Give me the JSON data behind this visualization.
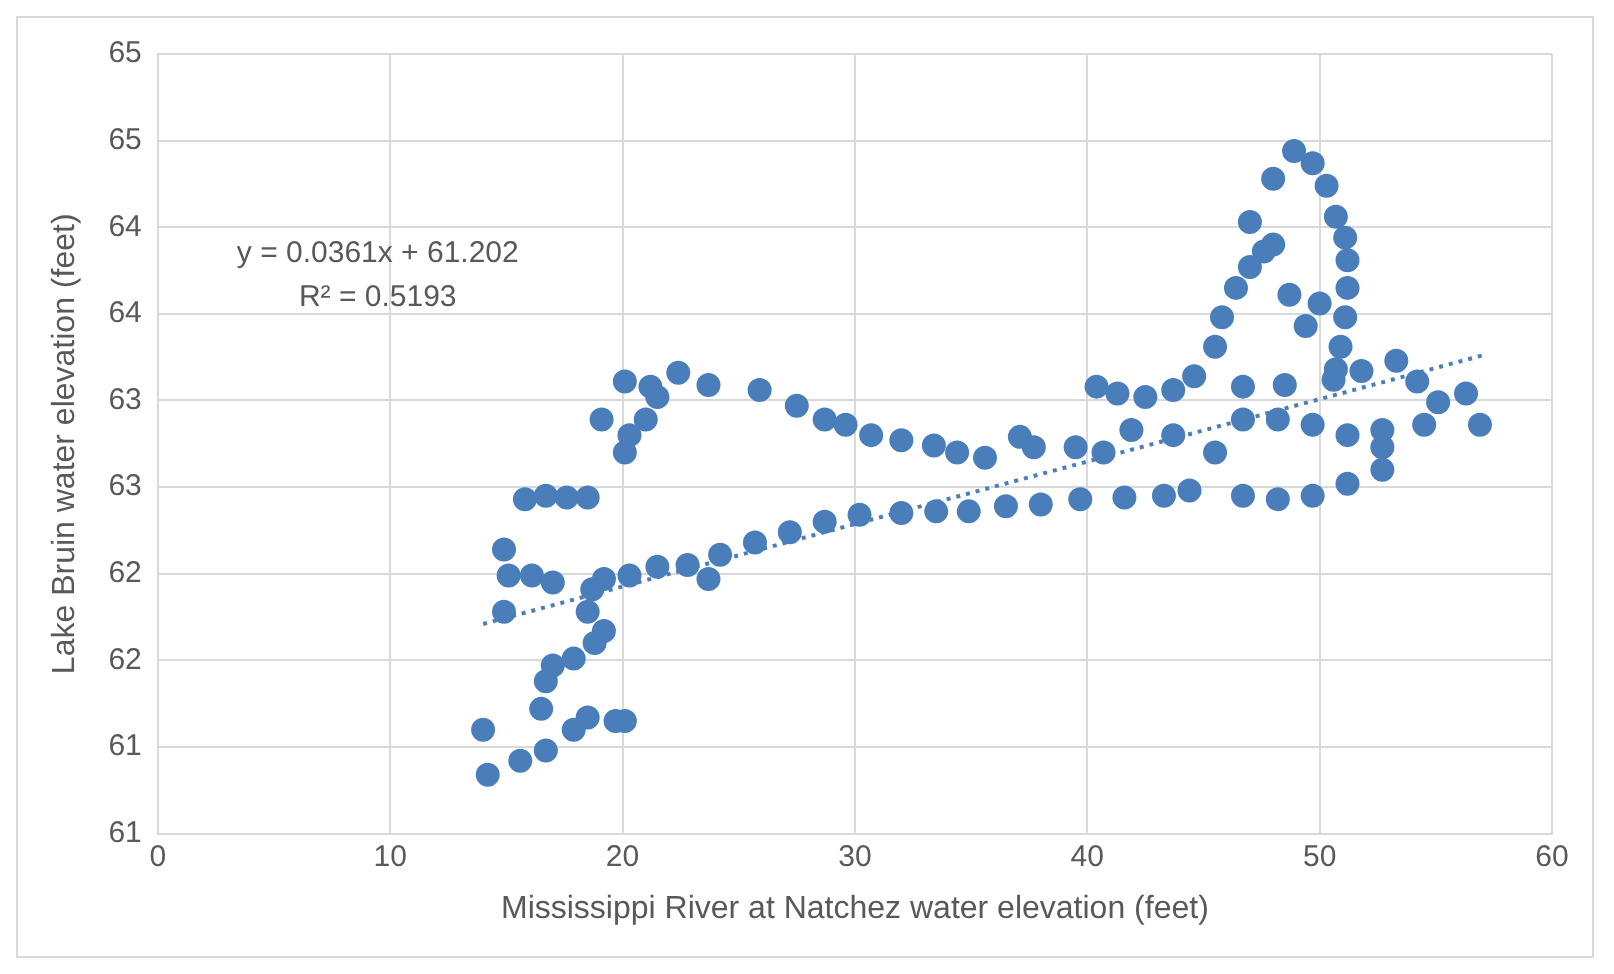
{
  "chart_data": {
    "type": "scatter",
    "xlabel": "Mississippi River at Natchez water elevation (feet)",
    "ylabel": "Lake Bruin water elevation (feet)",
    "annotations": [
      "y = 0.0361x + 61.202",
      "R² = 0.5193"
    ],
    "xlim": [
      0,
      60
    ],
    "xticks": [
      0,
      10,
      20,
      30,
      40,
      50,
      60
    ],
    "ylim": [
      60.5,
      65
    ],
    "yticks": [
      {
        "value": 60.5,
        "label": "61"
      },
      {
        "value": 61,
        "label": "61"
      },
      {
        "value": 61.5,
        "label": "62"
      },
      {
        "value": 62,
        "label": "62"
      },
      {
        "value": 62.5,
        "label": "63"
      },
      {
        "value": 63,
        "label": "63"
      },
      {
        "value": 63.5,
        "label": "64"
      },
      {
        "value": 64,
        "label": "64"
      },
      {
        "value": 64.5,
        "label": "65"
      },
      {
        "value": 65,
        "label": "65"
      }
    ],
    "grid": true,
    "legend": false,
    "marker": "circle",
    "series": [
      {
        "type": "scatter",
        "color": "#4a7ebb",
        "x": [
          14.0,
          14.2,
          15.6,
          16.7,
          17.9,
          18.5,
          19.7,
          20.1,
          16.5,
          16.7,
          17.0,
          17.9,
          18.8,
          19.2,
          18.5,
          18.7,
          19.2,
          20.3,
          21.5,
          22.8,
          23.7,
          24.2,
          25.7,
          27.2,
          28.7,
          30.2,
          32.0,
          33.5,
          34.9,
          36.5,
          38.0,
          39.7,
          41.6,
          43.3,
          44.4,
          14.9,
          15.1,
          16.1,
          17.0,
          14.9,
          15.8,
          16.7,
          17.6,
          18.5,
          19.1,
          20.1,
          20.3,
          21.0,
          21.5,
          20.1,
          21.2,
          22.4,
          23.7,
          25.9,
          27.5,
          28.7,
          29.6,
          30.7,
          32.0,
          33.4,
          34.4,
          35.6,
          37.1,
          37.7,
          39.5,
          40.7,
          40.4,
          41.3,
          42.5,
          43.7,
          44.6,
          43.7,
          41.9,
          45.5,
          46.7,
          48.2,
          49.7,
          51.2,
          52.7,
          52.7,
          51.2,
          49.7,
          48.2,
          46.7,
          46.7,
          48.5,
          50.6,
          51.8,
          53.3,
          54.2,
          55.1,
          56.3,
          56.9,
          54.5,
          52.7,
          45.5,
          45.8,
          46.4,
          47.0,
          47.6,
          48.0,
          47.0,
          48.0,
          48.9,
          49.7,
          50.3,
          50.7,
          51.1,
          51.2,
          51.2,
          51.1,
          50.9,
          50.7,
          48.7,
          49.4,
          50.0
        ],
        "values": [
          61.1,
          60.84,
          60.92,
          60.98,
          61.1,
          61.17,
          61.15,
          61.15,
          61.22,
          61.38,
          61.47,
          61.51,
          61.6,
          61.67,
          61.78,
          61.91,
          61.97,
          61.99,
          62.04,
          62.05,
          61.97,
          62.11,
          62.18,
          62.24,
          62.3,
          62.34,
          62.35,
          62.36,
          62.36,
          62.39,
          62.4,
          62.43,
          62.44,
          62.45,
          62.48,
          62.14,
          61.99,
          61.99,
          61.95,
          61.78,
          62.43,
          62.45,
          62.44,
          62.44,
          62.89,
          62.7,
          62.8,
          62.89,
          63.02,
          63.11,
          63.08,
          63.16,
          63.09,
          63.06,
          62.97,
          62.89,
          62.86,
          62.8,
          62.77,
          62.74,
          62.7,
          62.67,
          62.79,
          62.73,
          62.73,
          62.7,
          63.08,
          63.04,
          63.02,
          63.06,
          63.14,
          62.8,
          62.83,
          62.7,
          62.45,
          62.43,
          62.45,
          62.52,
          62.6,
          62.73,
          62.8,
          62.86,
          62.89,
          62.89,
          63.08,
          63.09,
          63.12,
          63.17,
          63.23,
          63.11,
          62.99,
          63.04,
          62.86,
          62.86,
          62.83,
          63.31,
          63.48,
          63.65,
          63.77,
          63.86,
          63.9,
          64.03,
          64.28,
          64.44,
          64.37,
          64.24,
          64.06,
          63.94,
          63.81,
          63.65,
          63.48,
          63.31,
          63.18,
          63.61,
          63.43,
          63.56
        ]
      },
      {
        "type": "line",
        "color": "#4a7ebb",
        "line_style": "dotted",
        "marker": "none",
        "x": [
          14,
          57
        ],
        "values": [
          61.71,
          63.26
        ]
      }
    ]
  }
}
